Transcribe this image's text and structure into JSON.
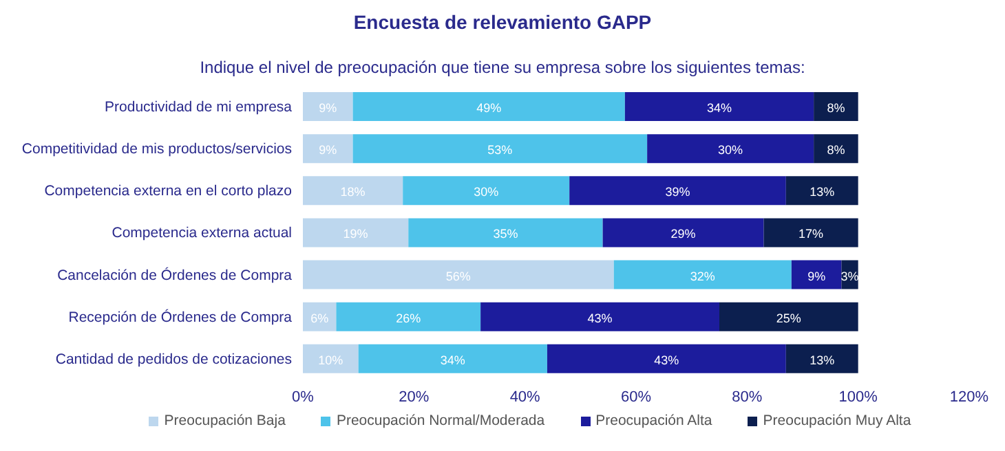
{
  "chart_data": {
    "type": "bar",
    "orientation": "horizontal",
    "stacked": true,
    "title": "Encuesta de relevamiento GAPP",
    "subtitle": "Indique el nivel de preocupación que tiene su empresa sobre los siguientes temas:",
    "categories": [
      "Productividad de mi empresa",
      "Competitividad de mis productos/servicios",
      "Competencia externa en el corto plazo",
      "Competencia externa actual",
      "Cancelación de Órdenes de Compra",
      "Recepción de Órdenes de Compra",
      "Cantidad de pedidos de cotizaciones"
    ],
    "series": [
      {
        "name": "Preocupación Baja",
        "color": "#bdd7ee",
        "values": [
          9,
          9,
          18,
          19,
          56,
          6,
          10
        ],
        "value_labels": [
          "9%",
          "9%",
          "18%",
          "19%",
          "56%",
          "6%",
          "10%"
        ]
      },
      {
        "name": "Preocupación Normal/Moderada",
        "color": "#4ec3ea",
        "values": [
          49,
          53,
          30,
          35,
          32,
          26,
          34
        ],
        "value_labels": [
          "49%",
          "53%",
          "30%",
          "35%",
          "32%",
          "26%",
          "34%"
        ]
      },
      {
        "name": "Preocupación Alta",
        "color": "#1c1c9c",
        "values": [
          34,
          30,
          39,
          29,
          9,
          43,
          43
        ],
        "value_labels": [
          "34%",
          "30%",
          "39%",
          "29%",
          "9%",
          "43%",
          "43%"
        ]
      },
      {
        "name": "Preocupación Muy Alta",
        "color": "#0c1f4f",
        "values": [
          8,
          8,
          13,
          17,
          3,
          25,
          13
        ],
        "value_labels": [
          "8%",
          "8%",
          "13%",
          "17%",
          "3%",
          "25%",
          "13%"
        ]
      }
    ],
    "xlim": [
      0,
      120
    ],
    "xticks": [
      {
        "value": 0,
        "label": "0%"
      },
      {
        "value": 20,
        "label": "20%"
      },
      {
        "value": 40,
        "label": "40%"
      },
      {
        "value": 60,
        "label": "60%"
      },
      {
        "value": 80,
        "label": "80%"
      },
      {
        "value": 100,
        "label": "100%"
      },
      {
        "value": 120,
        "label": "120%"
      }
    ],
    "grid": false,
    "legend": "bottom"
  }
}
